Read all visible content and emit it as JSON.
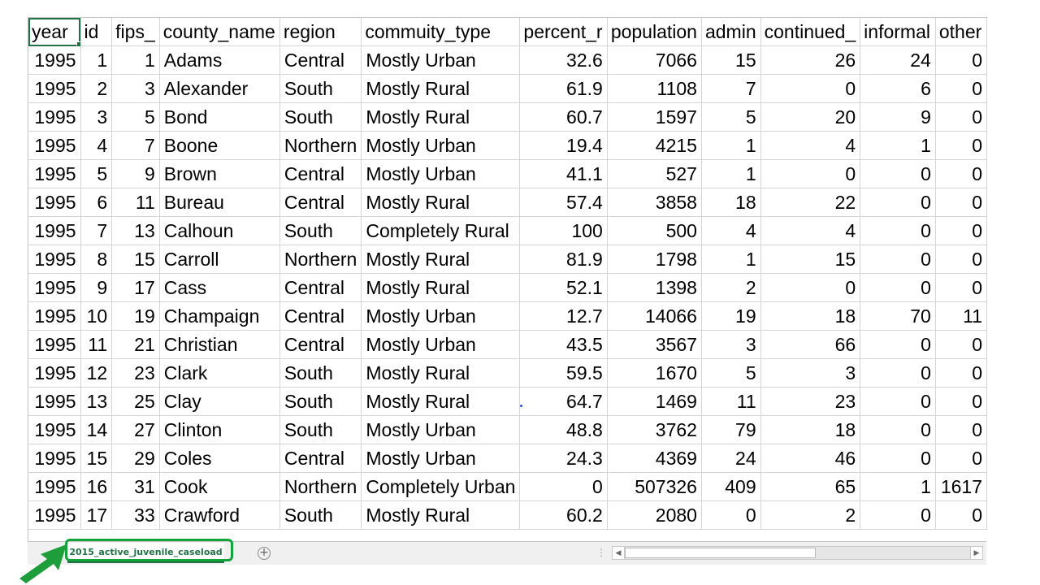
{
  "sheet": {
    "headers": [
      "year",
      "id",
      "fips_",
      "county_name",
      "region",
      "commuity_type",
      "percent_r",
      "population",
      "admin",
      "continued_",
      "informal",
      "other"
    ],
    "rows": [
      [
        "1995",
        "1",
        "1",
        "Adams",
        "Central",
        "Mostly Urban",
        "32.6",
        "7066",
        "15",
        "26",
        "24",
        "0"
      ],
      [
        "1995",
        "2",
        "3",
        "Alexander",
        "South",
        "Mostly Rural",
        "61.9",
        "1108",
        "7",
        "0",
        "6",
        "0"
      ],
      [
        "1995",
        "3",
        "5",
        "Bond",
        "South",
        "Mostly Rural",
        "60.7",
        "1597",
        "5",
        "20",
        "9",
        "0"
      ],
      [
        "1995",
        "4",
        "7",
        "Boone",
        "Northern",
        "Mostly Urban",
        "19.4",
        "4215",
        "1",
        "4",
        "1",
        "0"
      ],
      [
        "1995",
        "5",
        "9",
        "Brown",
        "Central",
        "Mostly Urban",
        "41.1",
        "527",
        "1",
        "0",
        "0",
        "0"
      ],
      [
        "1995",
        "6",
        "11",
        "Bureau",
        "Central",
        "Mostly Rural",
        "57.4",
        "3858",
        "18",
        "22",
        "0",
        "0"
      ],
      [
        "1995",
        "7",
        "13",
        "Calhoun",
        "South",
        "Completely Rural",
        "100",
        "500",
        "4",
        "4",
        "0",
        "0"
      ],
      [
        "1995",
        "8",
        "15",
        "Carroll",
        "Northern",
        "Mostly Rural",
        "81.9",
        "1798",
        "1",
        "15",
        "0",
        "0"
      ],
      [
        "1995",
        "9",
        "17",
        "Cass",
        "Central",
        "Mostly Rural",
        "52.1",
        "1398",
        "2",
        "0",
        "0",
        "0"
      ],
      [
        "1995",
        "10",
        "19",
        "Champaign",
        "Central",
        "Mostly Urban",
        "12.7",
        "14066",
        "19",
        "18",
        "70",
        "11"
      ],
      [
        "1995",
        "11",
        "21",
        "Christian",
        "Central",
        "Mostly Urban",
        "43.5",
        "3567",
        "3",
        "66",
        "0",
        "0"
      ],
      [
        "1995",
        "12",
        "23",
        "Clark",
        "South",
        "Mostly Rural",
        "59.5",
        "1670",
        "5",
        "3",
        "0",
        "0"
      ],
      [
        "1995",
        "13",
        "25",
        "Clay",
        "South",
        "Mostly Rural",
        "64.7",
        "1469",
        "11",
        "23",
        "0",
        "0"
      ],
      [
        "1995",
        "14",
        "27",
        "Clinton",
        "South",
        "Mostly Urban",
        "48.8",
        "3762",
        "79",
        "18",
        "0",
        "0"
      ],
      [
        "1995",
        "15",
        "29",
        "Coles",
        "Central",
        "Mostly Urban",
        "24.3",
        "4369",
        "24",
        "46",
        "0",
        "0"
      ],
      [
        "1995",
        "16",
        "31",
        "Cook",
        "Northern",
        "Completely Urban",
        "0",
        "507326",
        "409",
        "65",
        "1",
        "1617"
      ],
      [
        "1995",
        "17",
        "33",
        "Crawford",
        "South",
        "Mostly Rural",
        "60.2",
        "2080",
        "0",
        "2",
        "0",
        "0"
      ]
    ]
  },
  "tabs": {
    "active_sheet": "2015_active_juvenile_caseload",
    "add_symbol": "+",
    "split_symbol": "⋮",
    "scroll_left_symbol": "◀",
    "scroll_right_symbol": "▶"
  },
  "colors": {
    "excel_green": "#217346",
    "highlight_green": "#12a33a",
    "arrow_green": "#1e9e3a"
  }
}
